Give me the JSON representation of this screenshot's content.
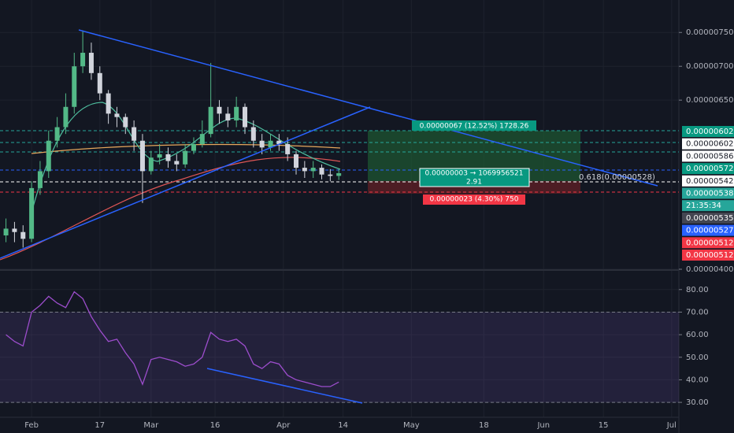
{
  "chart_data": [
    {
      "type": "candlestick",
      "up_color": "#53b987",
      "down_color": "#d1d4dc",
      "x": [
        -6,
        -4,
        -2,
        0,
        2,
        4,
        6,
        8,
        10,
        12,
        14,
        16,
        18,
        20,
        22,
        24,
        26,
        28,
        30,
        32,
        34,
        36,
        38,
        40,
        42,
        44,
        46,
        48,
        50,
        52,
        54,
        56,
        58,
        60,
        62,
        64,
        66,
        68,
        70,
        72
      ],
      "open": [
        4.5e-07,
        4.6e-07,
        4.55e-07,
        4.45e-07,
        5.2e-07,
        5.45e-07,
        5.9e-07,
        6.1e-07,
        6.4e-07,
        7e-07,
        7.2e-07,
        6.9e-07,
        6.6e-07,
        6.3e-07,
        6.25e-07,
        6.1e-07,
        5.9e-07,
        5.45e-07,
        5.65e-07,
        5.7e-07,
        5.6e-07,
        5.55e-07,
        5.75e-07,
        5.85e-07,
        6e-07,
        6.4e-07,
        6.3e-07,
        6.2e-07,
        6.4e-07,
        6.1e-07,
        5.9e-07,
        5.8e-07,
        5.9e-07,
        5.85e-07,
        5.7e-07,
        5.5e-07,
        5.45e-07,
        5.5e-07,
        5.4e-07,
        5.38e-07
      ],
      "high": [
        4.75e-07,
        4.7e-07,
        4.65e-07,
        5.3e-07,
        5.6e-07,
        6.05e-07,
        6.25e-07,
        6.6e-07,
        7.2e-07,
        7.53e-07,
        7.35e-07,
        7e-07,
        6.65e-07,
        6.4e-07,
        6.3e-07,
        6.2e-07,
        6e-07,
        5.75e-07,
        5.85e-07,
        5.8e-07,
        5.7e-07,
        5.85e-07,
        5.95e-07,
        6.2e-07,
        7.05e-07,
        6.5e-07,
        6.4e-07,
        6.55e-07,
        6.45e-07,
        6.2e-07,
        6e-07,
        6e-07,
        6e-07,
        5.95e-07,
        5.75e-07,
        5.6e-07,
        5.6e-07,
        5.55e-07,
        5.48e-07,
        5.48e-07
      ],
      "low": [
        4.4e-07,
        4.4e-07,
        4.32e-07,
        4.4e-07,
        5.1e-07,
        5.35e-07,
        5.8e-07,
        6e-07,
        6.3e-07,
        6.9e-07,
        6.8e-07,
        6.5e-07,
        6.15e-07,
        6.1e-07,
        6e-07,
        5.75e-07,
        4.98e-07,
        5.4e-07,
        5.55e-07,
        5.5e-07,
        5.45e-07,
        5.5e-07,
        5.7e-07,
        5.8e-07,
        5.95e-07,
        6.15e-07,
        6.1e-07,
        6.1e-07,
        6e-07,
        5.8e-07,
        5.7e-07,
        5.75e-07,
        5.75e-07,
        5.6e-07,
        5.4e-07,
        5.35e-07,
        5.35e-07,
        5.33e-07,
        5.3e-07,
        5.32e-07
      ],
      "close": [
        4.6e-07,
        4.55e-07,
        4.45e-07,
        5.2e-07,
        5.45e-07,
        5.9e-07,
        6.1e-07,
        6.4e-07,
        7e-07,
        7.2e-07,
        6.9e-07,
        6.6e-07,
        6.3e-07,
        6.25e-07,
        6.1e-07,
        5.9e-07,
        5.45e-07,
        5.65e-07,
        5.7e-07,
        5.6e-07,
        5.55e-07,
        5.75e-07,
        5.85e-07,
        6e-07,
        6.4e-07,
        6.3e-07,
        6.2e-07,
        6.4e-07,
        6.1e-07,
        5.9e-07,
        5.8e-07,
        5.9e-07,
        5.85e-07,
        5.7e-07,
        5.5e-07,
        5.45e-07,
        5.5e-07,
        5.4e-07,
        5.38e-07,
        5.42e-07
      ],
      "xlim": [
        -7.4,
        151.7
      ],
      "xticks": [
        {
          "value": 0,
          "label": "Feb"
        },
        {
          "value": 16,
          "label": "17"
        },
        {
          "value": 28,
          "label": "Mar"
        },
        {
          "value": 43,
          "label": "16"
        },
        {
          "value": 59,
          "label": "Apr"
        },
        {
          "value": 73,
          "label": "14"
        },
        {
          "value": 89,
          "label": "May"
        },
        {
          "value": 106,
          "label": "18"
        },
        {
          "value": 120,
          "label": "Jun"
        },
        {
          "value": 134,
          "label": "15"
        },
        {
          "value": 150,
          "label": "Jul"
        }
      ],
      "ylim": [
        4e-07,
        7.98e-07
      ],
      "yticks": [
        {
          "value": 7.5e-07,
          "label": "0.00000750"
        },
        {
          "value": 7e-07,
          "label": "0.00000700"
        },
        {
          "value": 6.5e-07,
          "label": "0.00000650"
        },
        {
          "value": 4e-07,
          "label": "0.00000400"
        }
      ],
      "price_labels": [
        {
          "label": "0.00000602",
          "color": "#089981"
        },
        {
          "label": "0.00000602",
          "color": "#ffffff"
        },
        {
          "label": "0.00000586",
          "color": "#ffffff"
        },
        {
          "label": "0.00000572",
          "color": "#089981"
        },
        {
          "label": "0.00000542",
          "color": "#ffffff"
        },
        {
          "label": "0.00000538",
          "color": "#26a69a"
        },
        {
          "label": "21:35:34",
          "color": "#26a69a"
        },
        {
          "label": "0.00000535",
          "color": "#434651"
        },
        {
          "label": "0.00000527",
          "color": "#2962ff"
        },
        {
          "label": "0.00000512",
          "color": "#f23645"
        },
        {
          "label": "0.00000512",
          "color": "#f23645"
        }
      ],
      "annotations": {
        "target": "0.00000067 (12.52%) 1728.26",
        "stop": "0.00000023 (4.30%) 750",
        "entry": "0.00000003 → 1069956521",
        "ratio": "2.91",
        "fib": "0.618(0.00000528)"
      }
    },
    {
      "type": "line",
      "color": "#9c4dcc",
      "x": [
        -6,
        -4,
        -2,
        0,
        2,
        4,
        6,
        8,
        10,
        12,
        14,
        16,
        18,
        20,
        22,
        24,
        26,
        28,
        30,
        32,
        34,
        36,
        38,
        40,
        42,
        44,
        46,
        48,
        50,
        52,
        54,
        56,
        58,
        60,
        62,
        64,
        66,
        68,
        70,
        72
      ],
      "values": [
        60,
        57,
        55,
        70,
        73,
        77,
        74,
        72,
        79,
        76,
        68,
        62,
        57,
        58,
        52,
        47,
        38,
        49,
        50,
        49,
        48,
        46,
        47,
        50,
        61,
        58,
        57,
        58,
        55,
        47,
        45,
        48,
        47,
        42,
        40,
        39,
        38,
        37,
        37,
        39
      ],
      "ylim": [
        23.4,
        88.3
      ],
      "yticks": [
        {
          "value": 80,
          "label": "80.00"
        },
        {
          "value": 70,
          "label": "70.00"
        },
        {
          "value": 60,
          "label": "60.00"
        },
        {
          "value": 50,
          "label": "50.00"
        },
        {
          "value": 40,
          "label": "40.00"
        },
        {
          "value": 30,
          "label": "30.00"
        }
      ],
      "band": [
        30,
        70
      ]
    }
  ]
}
